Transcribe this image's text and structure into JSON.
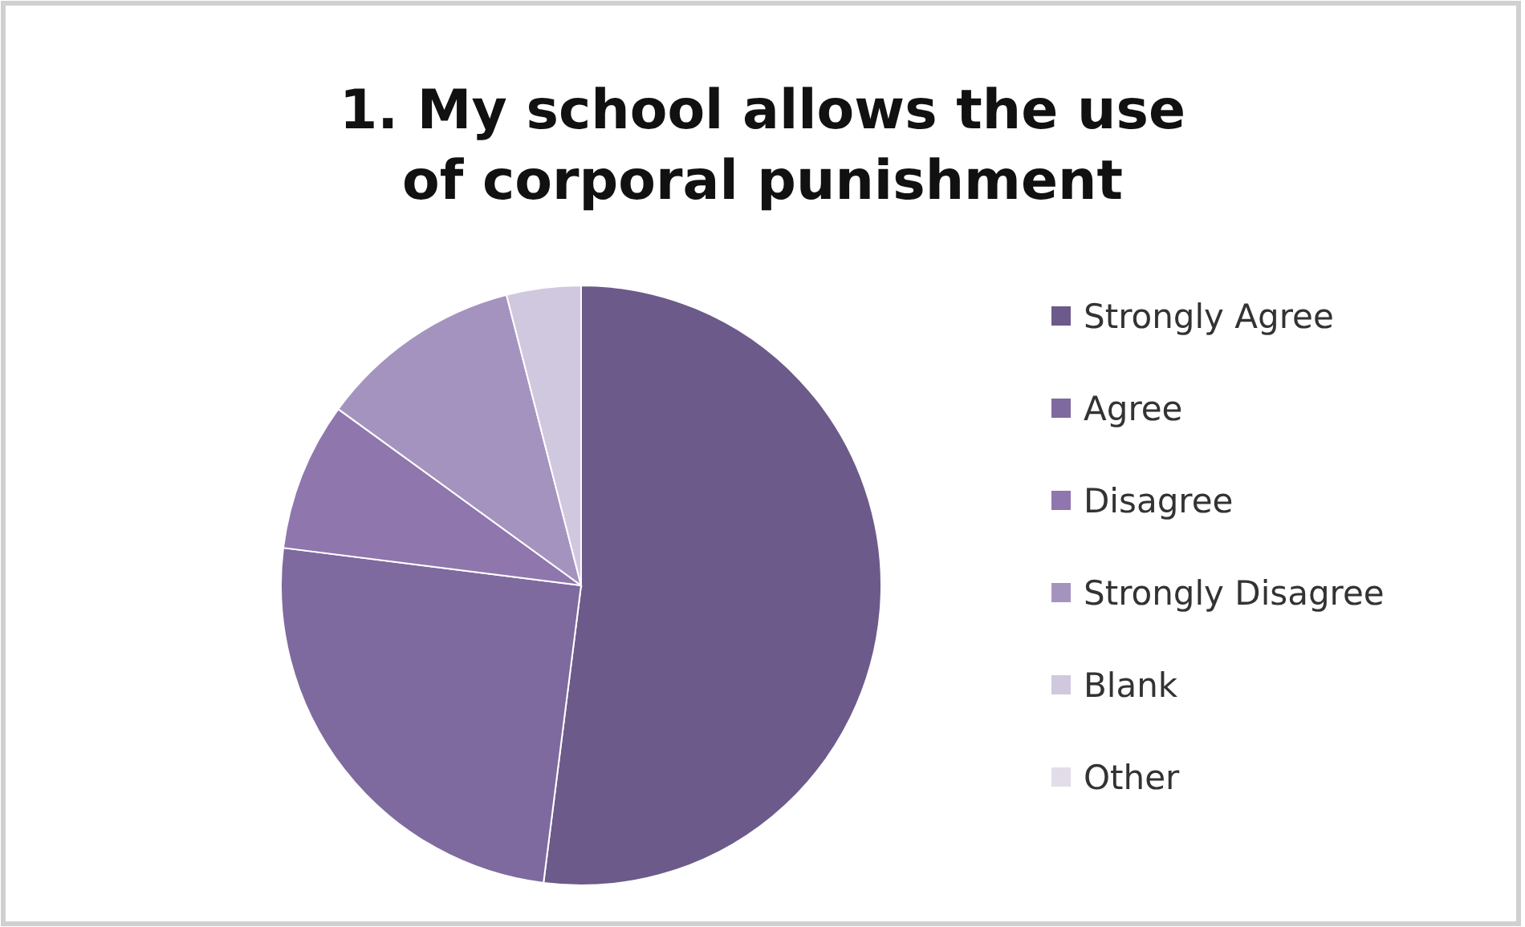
{
  "chart_data": {
    "type": "pie",
    "title": "1. My school allows the use of corporal punishment",
    "categories": [
      "Strongly Agree",
      "Agree",
      "Disagree",
      "Strongly Disagree",
      "Blank",
      "Other"
    ],
    "values": [
      52,
      25,
      8,
      11,
      4,
      0
    ],
    "colors": [
      "#6b5a8a",
      "#7e6a9e",
      "#8f76ad",
      "#a593bf",
      "#d0c8de",
      "#e2dde9"
    ],
    "legend": "right"
  }
}
